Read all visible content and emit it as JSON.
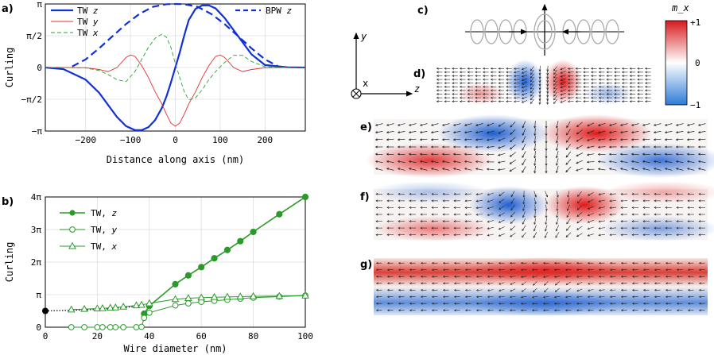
{
  "panel_labels": [
    "a)",
    "b)",
    "c)",
    "d)",
    "e)",
    "f)",
    "g)"
  ],
  "colorbar": {
    "label": "m_x",
    "ticks": [
      "+1",
      "0",
      "−1"
    ],
    "colors": [
      "#d7191c",
      "#ffffff",
      "#2c7bd6"
    ]
  },
  "axes_sketch": {
    "y": "y",
    "x": "x",
    "z": "z"
  },
  "chart_data": [
    {
      "type": "line",
      "xlabel": "Distance along axis (nm)",
      "ylabel": "Curling",
      "xlim": [
        -290,
        290
      ],
      "ylim": [
        -3.1416,
        3.1416
      ],
      "xticks": [
        -200,
        -100,
        0,
        100,
        200
      ],
      "xtick_labels": [
        "−200",
        "−100",
        "0",
        "100",
        "200"
      ],
      "yticks": [
        -3.1416,
        -1.5708,
        0,
        1.5708,
        3.1416
      ],
      "ytick_labels": [
        "−π",
        "−π/2",
        "0",
        "π/2",
        "π"
      ],
      "grid": true,
      "legend_left": [
        "TW z",
        "TW y",
        "TW x"
      ],
      "legend_right": [
        "BPW z"
      ],
      "series": [
        {
          "name": "TW z",
          "color": "#1030d8",
          "style": "solid",
          "width": 2.2,
          "x": [
            -290,
            -250,
            -200,
            -170,
            -150,
            -130,
            -110,
            -90,
            -75,
            -60,
            -45,
            -30,
            -20,
            -10,
            0,
            10,
            20,
            30,
            45,
            60,
            75,
            90,
            110,
            130,
            150,
            170,
            200,
            250,
            290
          ],
          "y": [
            0,
            -0.08,
            -0.6,
            -1.25,
            -1.85,
            -2.45,
            -2.9,
            -3.1,
            -3.1,
            -2.95,
            -2.6,
            -2.0,
            -1.45,
            -0.75,
            0.0,
            0.75,
            1.6,
            2.35,
            2.9,
            3.07,
            3.07,
            2.92,
            2.45,
            1.85,
            1.25,
            0.65,
            0.12,
            0.01,
            0
          ]
        },
        {
          "name": "TW y",
          "color": "#e03030",
          "style": "solid",
          "width": 0.9,
          "x": [
            -290,
            -250,
            -200,
            -170,
            -150,
            -130,
            -110,
            -100,
            -90,
            -75,
            -60,
            -45,
            -30,
            -20,
            -10,
            0,
            10,
            20,
            30,
            45,
            60,
            75,
            90,
            100,
            110,
            130,
            150,
            170,
            200,
            250,
            290
          ],
          "y": [
            0,
            0,
            -0.01,
            -0.1,
            -0.2,
            0,
            0.5,
            0.62,
            0.55,
            0.1,
            -0.5,
            -1.2,
            -1.8,
            -2.3,
            -2.75,
            -2.9,
            -2.75,
            -2.3,
            -1.8,
            -1.2,
            -0.5,
            0.1,
            0.55,
            0.62,
            0.5,
            0,
            -0.2,
            -0.1,
            -0.01,
            0,
            0
          ]
        },
        {
          "name": "TW x",
          "color": "#30a030",
          "style": "dashed",
          "width": 0.9,
          "x": [
            -290,
            -250,
            -200,
            -170,
            -150,
            -130,
            -110,
            -90,
            -75,
            -60,
            -45,
            -30,
            -20,
            -10,
            0,
            10,
            20,
            30,
            45,
            60,
            75,
            90,
            110,
            130,
            150,
            170,
            200,
            250,
            290
          ],
          "y": [
            0,
            0,
            -0.02,
            -0.15,
            -0.35,
            -0.6,
            -0.7,
            -0.2,
            0.4,
            1.0,
            1.45,
            1.65,
            1.5,
            1.0,
            0.2,
            -0.5,
            -1.2,
            -1.6,
            -1.5,
            -1.1,
            -0.6,
            -0.2,
            0.25,
            0.6,
            0.6,
            0.3,
            0.04,
            0,
            0
          ]
        },
        {
          "name": "BPW z",
          "color": "#1030d8",
          "style": "dashed",
          "width": 2.2,
          "x": [
            -230,
            -200,
            -170,
            -140,
            -110,
            -80,
            -50,
            -20,
            0,
            20,
            50,
            80,
            110,
            140,
            170,
            200,
            230
          ],
          "y": [
            0.05,
            0.4,
            0.95,
            1.55,
            2.15,
            2.65,
            3.0,
            3.13,
            3.14,
            3.13,
            3.0,
            2.65,
            2.15,
            1.55,
            0.95,
            0.4,
            0.05
          ]
        }
      ]
    },
    {
      "type": "line",
      "xlabel": "Wire diameter (nm)",
      "ylabel": "Curling",
      "xlim": [
        0,
        100
      ],
      "ylim": [
        0,
        12.566
      ],
      "xticks": [
        0,
        20,
        40,
        60,
        80,
        100
      ],
      "xtick_labels": [
        "0",
        "20",
        "40",
        "60",
        "80",
        "100"
      ],
      "yticks": [
        0,
        3.1416,
        6.2832,
        9.4248,
        12.566
      ],
      "ytick_labels": [
        "0",
        "π",
        "2π",
        "3π",
        "4π"
      ],
      "grid": true,
      "legend": [
        "TW, z",
        "TW, y",
        "TW, x"
      ],
      "color": "#2a9a2a",
      "black_point": {
        "x": 0,
        "y": 1.57
      },
      "dotted_x": [
        0,
        5,
        10,
        15,
        20,
        25,
        30,
        35
      ],
      "dotted_y": [
        1.57,
        1.6,
        1.63,
        1.67,
        1.72,
        1.8,
        1.9,
        2.0
      ],
      "series": [
        {
          "name": "TW, z",
          "marker": "filled-circle",
          "x": [
            38,
            40,
            50,
            55,
            60,
            65,
            70,
            75,
            80,
            90,
            100
          ],
          "y": [
            1.3,
            2.05,
            4.15,
            5.0,
            5.8,
            6.65,
            7.45,
            8.3,
            9.2,
            10.9,
            12.566
          ]
        },
        {
          "name": "TW, y",
          "marker": "open-circle",
          "x": [
            10,
            15,
            20,
            22,
            25,
            27,
            30,
            35,
            37,
            38,
            40,
            50,
            55,
            60,
            65,
            70,
            75,
            80,
            90,
            100
          ],
          "y": [
            0,
            0,
            0,
            0,
            0,
            0,
            0,
            0,
            0.04,
            0.9,
            1.4,
            2.1,
            2.3,
            2.45,
            2.55,
            2.65,
            2.75,
            2.85,
            2.95,
            3.05
          ]
        },
        {
          "name": "TW, x",
          "marker": "open-triangle",
          "x": [
            10,
            15,
            20,
            22,
            25,
            27,
            30,
            35,
            37,
            40,
            50,
            55,
            60,
            65,
            70,
            75,
            80,
            90,
            100
          ],
          "y": [
            1.7,
            1.75,
            1.8,
            1.82,
            1.87,
            1.9,
            1.97,
            2.1,
            2.15,
            2.3,
            2.7,
            2.8,
            2.85,
            2.9,
            2.92,
            2.95,
            2.98,
            3.0,
            3.05
          ]
        }
      ]
    }
  ]
}
